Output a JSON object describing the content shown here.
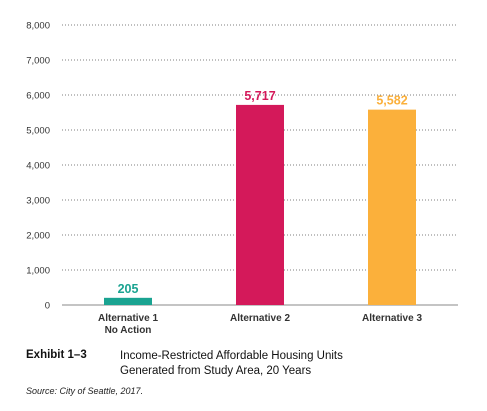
{
  "chart_data": {
    "type": "bar",
    "categories": [
      [
        "Alternative 1",
        "No Action"
      ],
      [
        "Alternative 2"
      ],
      [
        "Alternative 3"
      ]
    ],
    "values": [
      205,
      5717,
      5582
    ],
    "value_labels": [
      "205",
      "5,717",
      "5,582"
    ],
    "colors": [
      "#1aa391",
      "#d4195a",
      "#fbb03b"
    ],
    "ylim": [
      0,
      8000
    ],
    "yticks": [
      "0",
      "1,000",
      "2,000",
      "3,000",
      "4,000",
      "5,000",
      "6,000",
      "7,000",
      "8,000"
    ],
    "grid": true,
    "grid_style": "dotted",
    "title": "",
    "xlabel": "",
    "ylabel": ""
  },
  "caption": {
    "exhibit": "Exhibit 1–3",
    "title_line1": "Income-Restricted Affordable Housing Units",
    "title_line2": "Generated from Study Area, 20 Years",
    "source": "Source: City of Seattle, 2017."
  }
}
